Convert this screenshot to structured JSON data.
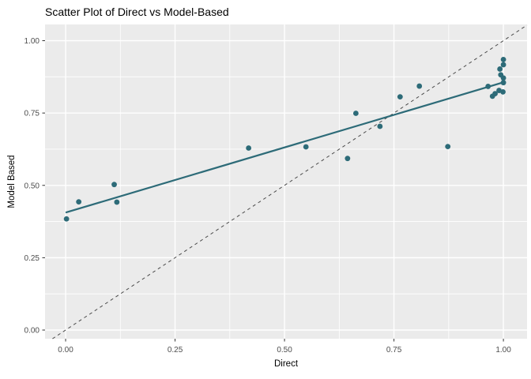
{
  "title": "Scatter Plot of Direct vs Model-Based",
  "chart_data": {
    "type": "scatter",
    "title": "Scatter Plot of Direct vs Model-Based",
    "xlabel": "Direct",
    "ylabel": "Model Based",
    "xlim": [
      -0.047,
      1.054
    ],
    "ylim": [
      -0.03,
      1.056
    ],
    "x_ticks": {
      "values": [
        0,
        0.25,
        0.5,
        0.75,
        1.0
      ],
      "labels": [
        "0.00",
        "0.25",
        "0.50",
        "0.75",
        "1.00"
      ]
    },
    "y_ticks": {
      "values": [
        0,
        0.25,
        0.5,
        0.75,
        1.0
      ],
      "labels": [
        "0.00",
        "0.25",
        "0.50",
        "0.75",
        "1.00"
      ]
    },
    "grid": {
      "major_step": 0.25,
      "minor_step": 0.125,
      "color": "#ffffff",
      "on": true
    },
    "legend": "none",
    "panel_background": "#ebebeb",
    "point_color": "#2d6b78",
    "points": [
      [
        0.002,
        0.384
      ],
      [
        0.03,
        0.443
      ],
      [
        0.111,
        0.503
      ],
      [
        0.117,
        0.442
      ],
      [
        0.418,
        0.629
      ],
      [
        0.549,
        0.633
      ],
      [
        0.644,
        0.593
      ],
      [
        0.663,
        0.749
      ],
      [
        0.718,
        0.704
      ],
      [
        0.764,
        0.806
      ],
      [
        0.808,
        0.843
      ],
      [
        0.873,
        0.634
      ],
      [
        0.965,
        0.842
      ],
      [
        0.975,
        0.808
      ],
      [
        0.981,
        0.817
      ],
      [
        0.99,
        0.828
      ],
      [
        0.999,
        0.823
      ],
      [
        1.0,
        0.855
      ],
      [
        1.0,
        0.871
      ],
      [
        0.994,
        0.882
      ],
      [
        0.992,
        0.902
      ],
      [
        1.0,
        0.917
      ],
      [
        1.0,
        0.935
      ]
    ],
    "trend_line": {
      "x1": 0.0,
      "y1": 0.406,
      "x2": 1.002,
      "y2": 0.857,
      "color": "#2d6b78",
      "width": 2.2
    },
    "reference_line": {
      "type": "identity",
      "slope": 1,
      "intercept": 0,
      "style": "dashed",
      "color": "#4a4a4a"
    },
    "tick_label_color": "#4d4d4d",
    "tick_mark_color": "#333333"
  }
}
